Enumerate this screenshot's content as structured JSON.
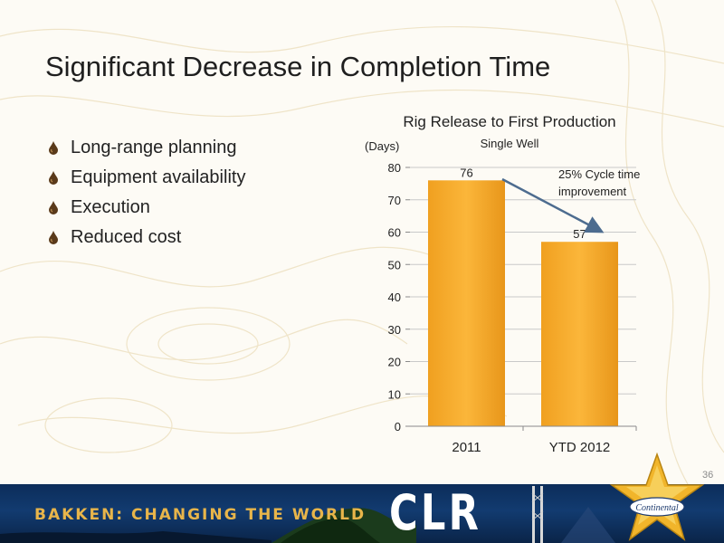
{
  "slide": {
    "title": "Significant Decrease in Completion Time",
    "bullets": [
      "Long-range planning",
      "Equipment availability",
      "Execution",
      "Reduced cost"
    ],
    "page_number": "36"
  },
  "footer": {
    "tagline": "BAKKEN: CHANGING THE WORLD",
    "brand": "CLR",
    "logo_text": "Continental"
  },
  "colors": {
    "bar": "#f5a520",
    "footer_bg": "#0c2d5a",
    "tagline": "#e8b54a"
  },
  "chart_data": {
    "type": "bar",
    "title": "Rig Release to First Production",
    "subtitle": "Single Well",
    "ylabel": "(Days)",
    "categories": [
      "2011",
      "YTD 2012"
    ],
    "values": [
      76,
      57
    ],
    "data_labels": [
      "76",
      "57"
    ],
    "ylim": [
      0,
      80
    ],
    "yticks": [
      0,
      10,
      20,
      30,
      40,
      50,
      60,
      70,
      80
    ],
    "grid": true,
    "annotation": {
      "lines": [
        "25% Cycle time",
        "improvement"
      ],
      "arrow_from": "2011",
      "arrow_to": "YTD 2012"
    }
  }
}
